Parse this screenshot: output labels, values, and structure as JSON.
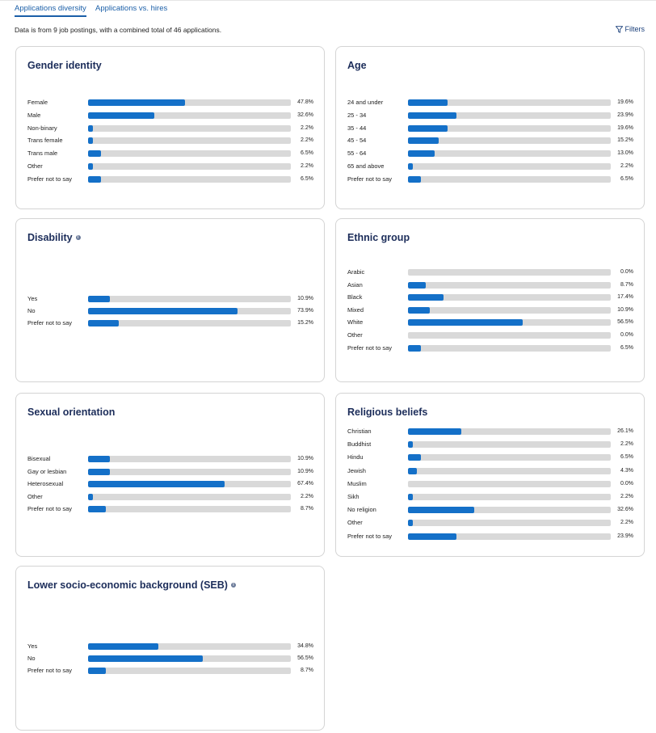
{
  "tabs": [
    {
      "label": "Applications diversity",
      "active": true
    },
    {
      "label": "Applications vs. hires",
      "active": false
    }
  ],
  "info_text": "Data is from 9 job postings, with a combined total of 46 applications.",
  "filters_label": "Filters",
  "colors": {
    "bar_fill": "#1470c8",
    "bar_track": "#d9d9d9",
    "title": "#1c2d5a",
    "link": "#1b5fa8"
  },
  "cards": [
    {
      "id": "gender",
      "title": "Gender identity",
      "info": false,
      "rows": [
        {
          "label": "Female",
          "value": "47.8%",
          "pct": 47.8
        },
        {
          "label": "Male",
          "value": "32.6%",
          "pct": 32.6
        },
        {
          "label": "Non-binary",
          "value": "2.2%",
          "pct": 2.2
        },
        {
          "label": "Trans female",
          "value": "2.2%",
          "pct": 2.2
        },
        {
          "label": "Trans male",
          "value": "6.5%",
          "pct": 6.5
        },
        {
          "label": "Other",
          "value": "2.2%",
          "pct": 2.2
        },
        {
          "label": "Prefer not to say",
          "value": "6.5%",
          "pct": 6.5
        }
      ]
    },
    {
      "id": "age",
      "title": "Age",
      "info": false,
      "rows": [
        {
          "label": "24 and under",
          "value": "19.6%",
          "pct": 19.6
        },
        {
          "label": "25 - 34",
          "value": "23.9%",
          "pct": 23.9
        },
        {
          "label": "35 - 44",
          "value": "19.6%",
          "pct": 19.6
        },
        {
          "label": "45 - 54",
          "value": "15.2%",
          "pct": 15.2
        },
        {
          "label": "55 - 64",
          "value": "13.0%",
          "pct": 13.0
        },
        {
          "label": "65 and above",
          "value": "2.2%",
          "pct": 2.2
        },
        {
          "label": "Prefer not to say",
          "value": "6.5%",
          "pct": 6.5
        }
      ]
    },
    {
      "id": "disability",
      "title": "Disability",
      "info": true,
      "rows": [
        {
          "label": "Yes",
          "value": "10.9%",
          "pct": 10.9
        },
        {
          "label": "No",
          "value": "73.9%",
          "pct": 73.9
        },
        {
          "label": "Prefer not to say",
          "value": "15.2%",
          "pct": 15.2
        }
      ]
    },
    {
      "id": "ethnic",
      "title": "Ethnic group",
      "info": false,
      "rows": [
        {
          "label": "Arabic",
          "value": "0.0%",
          "pct": 0
        },
        {
          "label": "Asian",
          "value": "8.7%",
          "pct": 8.7
        },
        {
          "label": "Black",
          "value": "17.4%",
          "pct": 17.4
        },
        {
          "label": "Mixed",
          "value": "10.9%",
          "pct": 10.9
        },
        {
          "label": "White",
          "value": "56.5%",
          "pct": 56.5
        },
        {
          "label": "Other",
          "value": "0.0%",
          "pct": 0
        },
        {
          "label": "Prefer not to say",
          "value": "6.5%",
          "pct": 6.5
        }
      ]
    },
    {
      "id": "sexual",
      "title": "Sexual orientation",
      "info": false,
      "rows": [
        {
          "label": "Bisexual",
          "value": "10.9%",
          "pct": 10.9
        },
        {
          "label": "Gay or lesbian",
          "value": "10.9%",
          "pct": 10.9
        },
        {
          "label": "Heterosexual",
          "value": "67.4%",
          "pct": 67.4
        },
        {
          "label": "Other",
          "value": "2.2%",
          "pct": 2.2
        },
        {
          "label": "Prefer not to say",
          "value": "8.7%",
          "pct": 8.7
        }
      ]
    },
    {
      "id": "religious",
      "title": "Religious beliefs",
      "info": false,
      "rows": [
        {
          "label": "Christian",
          "value": "26.1%",
          "pct": 26.1
        },
        {
          "label": "Buddhist",
          "value": "2.2%",
          "pct": 2.2
        },
        {
          "label": "Hindu",
          "value": "6.5%",
          "pct": 6.5
        },
        {
          "label": "Jewish",
          "value": "4.3%",
          "pct": 4.3
        },
        {
          "label": "Muslim",
          "value": "0.0%",
          "pct": 0
        },
        {
          "label": "Sikh",
          "value": "2.2%",
          "pct": 2.2
        },
        {
          "label": "No religion",
          "value": "32.6%",
          "pct": 32.6
        },
        {
          "label": "Other",
          "value": "2.2%",
          "pct": 2.2
        },
        {
          "label": "Prefer not to say",
          "value": "23.9%",
          "pct": 23.9
        }
      ]
    },
    {
      "id": "seb",
      "title": "Lower socio-economic background (SEB)",
      "info": true,
      "rows": [
        {
          "label": "Yes",
          "value": "34.8%",
          "pct": 34.8
        },
        {
          "label": "No",
          "value": "56.5%",
          "pct": 56.5
        },
        {
          "label": "Prefer not to say",
          "value": "8.7%",
          "pct": 8.7
        }
      ]
    }
  ]
}
